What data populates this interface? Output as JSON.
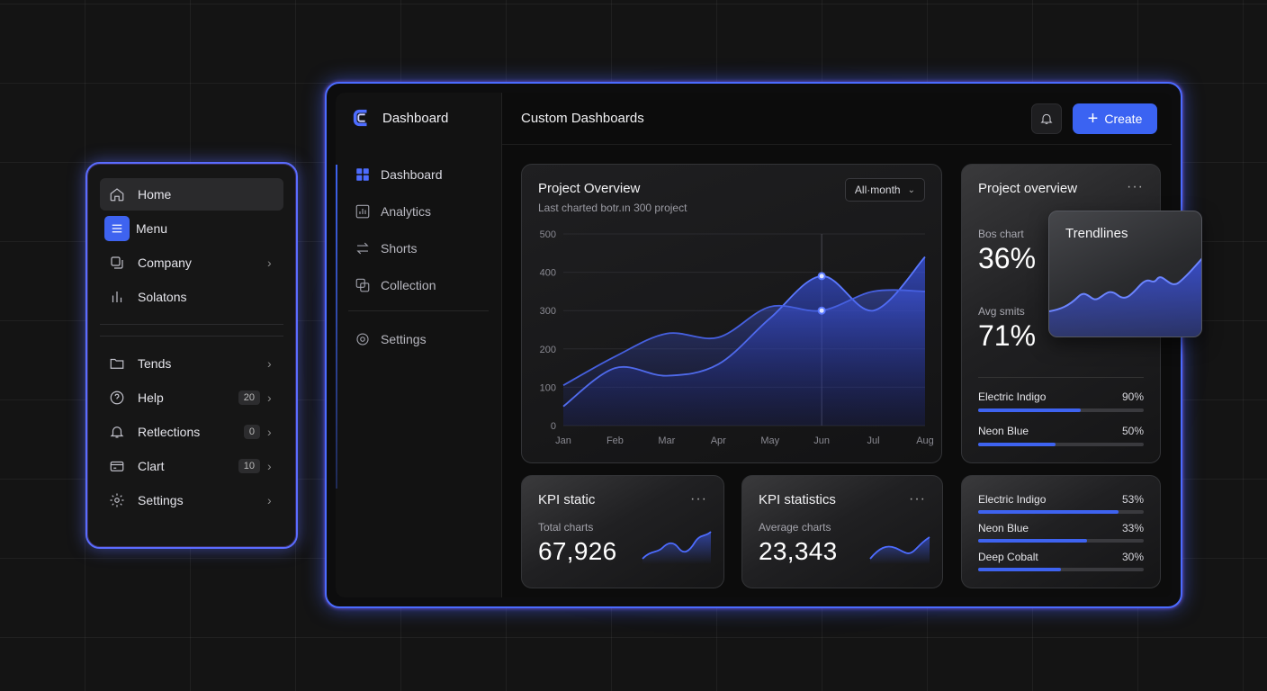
{
  "side_menu": {
    "items_top": [
      {
        "label": "Home",
        "icon": "home-icon"
      },
      {
        "label": "Menu",
        "icon": "menu-icon"
      },
      {
        "label": "Company",
        "icon": "copy-icon"
      },
      {
        "label": "Solatons",
        "icon": "bar-chart-icon"
      }
    ],
    "items_bottom": [
      {
        "label": "Tends",
        "icon": "folder-icon",
        "badge": ""
      },
      {
        "label": "Help",
        "icon": "help-icon",
        "badge": "20"
      },
      {
        "label": "Retlections",
        "icon": "bell-icon",
        "badge": "0"
      },
      {
        "label": "Clart",
        "icon": "card-icon",
        "badge": "10"
      },
      {
        "label": "Settings",
        "icon": "gear-icon",
        "badge": ""
      }
    ]
  },
  "window": {
    "brand": "Dashboard",
    "nav": [
      {
        "label": "Dashboard",
        "icon": "grid-icon"
      },
      {
        "label": "Analytics",
        "icon": "analytics-icon"
      },
      {
        "label": "Shorts",
        "icon": "swap-icon"
      },
      {
        "label": "Collection",
        "icon": "collection-icon"
      }
    ],
    "nav_settings": "Settings",
    "title": "Custom Dashboards",
    "create_label": "Create"
  },
  "overview": {
    "title": "Project Overview",
    "subtitle": "Last charted botr.ın 300 project",
    "period": "All·month"
  },
  "project_overview": {
    "title": "Project overview",
    "metric1_label": "Bos chart",
    "metric1_value": "36%",
    "metric2_label": "Avg smits",
    "metric2_value": "71%",
    "bars": [
      {
        "label": "Electric Indigo",
        "pct": "90%",
        "fill": 0.62
      },
      {
        "label": "Neon Blue",
        "pct": "50%",
        "fill": 0.47
      }
    ]
  },
  "trendlines": {
    "title": "Trendlines"
  },
  "kpi1": {
    "title": "KPI static",
    "label": "Total charts",
    "value": "67,926"
  },
  "kpi2": {
    "title": "KPI statistics",
    "label": "Average charts",
    "value": "23,343"
  },
  "distribution": [
    {
      "label": "Electric Indigo",
      "pct": "53%",
      "fill": 0.85
    },
    {
      "label": "Neon Blue",
      "pct": "33%",
      "fill": 0.66
    },
    {
      "label": "Deep Cobalt",
      "pct": "30%",
      "fill": 0.5
    }
  ],
  "chart_data": {
    "type": "area",
    "categories": [
      "Jan",
      "Feb",
      "Mar",
      "Apr",
      "May",
      "Jun",
      "Jul",
      "Aug"
    ],
    "yticks": [
      0,
      100,
      200,
      300,
      400,
      500
    ],
    "ylim": [
      0,
      500
    ],
    "series": [
      {
        "values": [
          50,
          150,
          130,
          160,
          280,
          390,
          300,
          440
        ]
      },
      {
        "values": [
          105,
          180,
          240,
          230,
          310,
          300,
          350,
          350
        ]
      }
    ],
    "highlight_category": "Jun",
    "colors": {
      "line": "#4d6cff",
      "fill": "#2f44c8"
    }
  }
}
